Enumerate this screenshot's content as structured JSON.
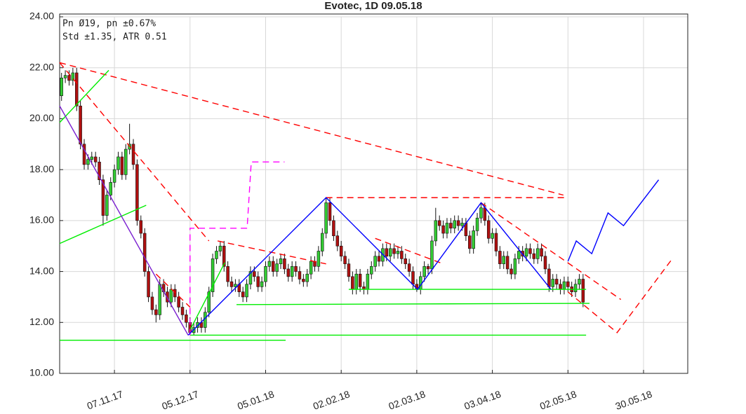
{
  "chart_data": {
    "type": "candlestick",
    "title": "Evotec, 1D 09.05.18",
    "info": [
      "Pn  Ø19, pn ±0.67%",
      "Std ±1.35, ATR 0.51"
    ],
    "xlim": [
      -14.5,
      151.7
    ],
    "xticks": [
      {
        "value": 0,
        "label": "07.11.17"
      },
      {
        "value": 20,
        "label": "05.12.17"
      },
      {
        "value": 40,
        "label": "05.01.18"
      },
      {
        "value": 60,
        "label": "02.02.18"
      },
      {
        "value": 80,
        "label": "02.03.18"
      },
      {
        "value": 100,
        "label": "03.04.18"
      },
      {
        "value": 120,
        "label": "02.05.18"
      },
      {
        "value": 140,
        "label": "30.05.18"
      }
    ],
    "ylim": [
      10,
      24
    ],
    "yticks": [
      {
        "value": 10,
        "label": "10.00"
      },
      {
        "value": 12,
        "label": "12.00"
      },
      {
        "value": 14,
        "label": "14.00"
      },
      {
        "value": 16,
        "label": "16.00"
      },
      {
        "value": 18,
        "label": "18.00"
      },
      {
        "value": 20,
        "label": "20.00"
      },
      {
        "value": 22,
        "label": "22.00"
      },
      {
        "value": 24,
        "label": "24.00"
      }
    ],
    "grid": true,
    "up_color": "#33cc33",
    "down_color": "#b01010",
    "x": [
      -14,
      -13,
      -12,
      -11,
      -10,
      -9,
      -8,
      -7,
      -6,
      -5,
      -4,
      -3,
      -2,
      -1,
      0,
      1,
      2,
      3,
      4,
      5,
      6,
      7,
      8,
      9,
      10,
      11,
      12,
      13,
      14,
      15,
      16,
      17,
      18,
      19,
      20,
      21,
      22,
      23,
      24,
      25,
      26,
      27,
      28,
      29,
      30,
      31,
      32,
      33,
      34,
      35,
      36,
      37,
      38,
      39,
      40,
      41,
      42,
      43,
      44,
      45,
      46,
      47,
      48,
      49,
      50,
      51,
      52,
      53,
      54,
      55,
      56,
      57,
      58,
      59,
      60,
      61,
      62,
      63,
      64,
      65,
      66,
      67,
      68,
      69,
      70,
      71,
      72,
      73,
      74,
      75,
      76,
      77,
      78,
      79,
      80,
      81,
      82,
      83,
      84,
      85,
      86,
      87,
      88,
      89,
      90,
      91,
      92,
      93,
      94,
      95,
      96,
      97,
      98,
      99,
      100,
      101,
      102,
      103,
      104,
      105,
      106,
      107,
      108,
      109,
      110,
      111,
      112,
      113,
      114,
      115,
      116,
      117,
      118,
      119,
      120,
      121,
      122,
      123,
      124
    ],
    "open": [
      20.9,
      21.6,
      21.7,
      21.5,
      21.8,
      20.5,
      19.0,
      18.2,
      18.4,
      18.5,
      18.3,
      17.6,
      16.2,
      17.0,
      17.5,
      18.0,
      18.5,
      17.8,
      18.8,
      19.0,
      18.2,
      16.0,
      15.5,
      14.0,
      13.0,
      12.5,
      12.3,
      13.5,
      13.2,
      12.8,
      13.3,
      13.0,
      12.6,
      12.3,
      12.0,
      11.6,
      11.8,
      12.0,
      11.8,
      12.4,
      13.2,
      14.5,
      14.8,
      15.0,
      14.2,
      13.6,
      13.4,
      13.5,
      13.2,
      13.0,
      13.5,
      14.0,
      13.8,
      13.4,
      13.6,
      14.2,
      14.4,
      14.0,
      14.3,
      14.5,
      14.1,
      13.8,
      14.2,
      14.0,
      13.7,
      13.6,
      13.9,
      14.4,
      14.2,
      14.8,
      15.5,
      16.7,
      16.0,
      15.4,
      15.0,
      14.6,
      14.3,
      13.8,
      13.3,
      13.9,
      13.4,
      13.3,
      13.9,
      14.2,
      14.6,
      14.4,
      14.9,
      14.6,
      14.9,
      14.7,
      14.8,
      14.5,
      14.3,
      14.0,
      13.5,
      13.3,
      13.8,
      14.2,
      14.1,
      15.2,
      16.0,
      15.8,
      15.5,
      15.9,
      15.7,
      16.0,
      15.8,
      15.9,
      15.4,
      14.9,
      15.6,
      16.1,
      16.5,
      16.0,
      15.3,
      15.5,
      14.8,
      14.3,
      14.6,
      14.1,
      13.9,
      14.5,
      14.8,
      14.6,
      14.9,
      14.7,
      14.5,
      14.9,
      14.6,
      14.1,
      13.4,
      13.7,
      13.5,
      13.3,
      13.6,
      13.4,
      13.2,
      13.5,
      13.7
    ],
    "high": [
      21.8,
      21.9,
      21.9,
      22.0,
      22.0,
      20.7,
      19.2,
      18.6,
      18.7,
      18.7,
      18.5,
      17.8,
      17.2,
      17.7,
      18.2,
      18.7,
      18.7,
      19.0,
      19.8,
      19.2,
      18.4,
      16.2,
      15.7,
      14.2,
      13.2,
      12.7,
      13.7,
      13.7,
      13.4,
      13.5,
      13.5,
      13.2,
      12.8,
      12.5,
      12.2,
      12.0,
      12.2,
      12.2,
      12.6,
      13.4,
      14.7,
      15.0,
      15.2,
      15.2,
      14.4,
      13.8,
      13.7,
      13.7,
      13.4,
      13.7,
      14.2,
      14.2,
      14.0,
      13.8,
      14.4,
      14.6,
      14.6,
      14.5,
      14.7,
      14.7,
      14.3,
      14.4,
      14.4,
      14.2,
      13.9,
      14.1,
      14.6,
      14.6,
      15.0,
      15.7,
      16.9,
      16.9,
      16.2,
      15.6,
      15.2,
      14.8,
      14.5,
      14.0,
      14.1,
      14.1,
      13.6,
      14.1,
      14.4,
      14.8,
      14.8,
      15.1,
      15.1,
      15.1,
      15.1,
      15.0,
      15.0,
      14.7,
      14.5,
      14.2,
      13.7,
      14.0,
      14.4,
      14.3,
      15.4,
      16.5,
      16.2,
      16.0,
      16.1,
      16.1,
      16.2,
      16.2,
      16.1,
      16.1,
      15.6,
      15.8,
      16.3,
      16.7,
      16.7,
      16.2,
      15.7,
      15.7,
      15.0,
      14.8,
      14.8,
      14.3,
      14.7,
      15.0,
      15.0,
      15.1,
      15.1,
      14.9,
      15.1,
      15.1,
      14.8,
      14.3,
      13.9,
      13.9,
      13.7,
      13.8,
      13.8,
      13.6,
      13.7,
      13.9,
      13.9
    ],
    "low": [
      20.7,
      21.4,
      21.3,
      21.3,
      20.3,
      18.8,
      18.0,
      18.0,
      18.2,
      18.1,
      17.4,
      15.8,
      16.0,
      16.8,
      17.3,
      17.8,
      17.6,
      17.6,
      18.6,
      18.0,
      15.8,
      15.3,
      13.8,
      12.8,
      12.3,
      12.0,
      12.1,
      13.0,
      12.6,
      12.6,
      12.8,
      12.4,
      12.1,
      11.8,
      11.5,
      11.5,
      11.6,
      11.6,
      11.6,
      12.2,
      13.0,
      14.3,
      14.6,
      14.0,
      13.4,
      13.2,
      13.2,
      13.0,
      12.8,
      12.8,
      13.3,
      13.6,
      13.2,
      13.2,
      13.4,
      14.0,
      13.8,
      13.8,
      14.1,
      13.9,
      13.6,
      13.6,
      13.8,
      13.5,
      13.4,
      13.4,
      13.7,
      14.0,
      14.0,
      14.6,
      15.3,
      15.8,
      15.2,
      14.8,
      14.4,
      14.1,
      13.6,
      13.1,
      13.1,
      13.2,
      13.1,
      13.1,
      13.7,
      14.0,
      14.2,
      14.2,
      14.4,
      14.4,
      14.5,
      14.5,
      14.3,
      14.1,
      13.8,
      13.3,
      13.2,
      13.1,
      13.6,
      13.9,
      13.9,
      15.0,
      15.6,
      15.3,
      15.3,
      15.5,
      15.5,
      15.6,
      15.6,
      15.2,
      14.7,
      14.7,
      15.4,
      15.9,
      15.8,
      15.1,
      15.1,
      14.6,
      14.1,
      14.1,
      13.9,
      13.7,
      13.7,
      14.3,
      14.4,
      14.4,
      14.5,
      14.3,
      14.3,
      14.4,
      13.9,
      13.2,
      13.2,
      13.3,
      13.1,
      13.1,
      13.2,
      13.0,
      13.0,
      13.3,
      12.6
    ],
    "close": [
      21.6,
      21.7,
      21.5,
      21.8,
      20.5,
      19.0,
      18.2,
      18.4,
      18.5,
      18.3,
      17.6,
      16.2,
      17.0,
      17.5,
      18.0,
      18.5,
      17.8,
      18.8,
      19.0,
      18.2,
      16.0,
      15.5,
      14.0,
      13.0,
      12.5,
      12.3,
      13.5,
      13.2,
      12.8,
      13.3,
      13.0,
      12.6,
      12.3,
      12.0,
      11.6,
      11.8,
      12.0,
      11.8,
      12.4,
      13.2,
      14.5,
      14.8,
      15.0,
      14.2,
      13.6,
      13.4,
      13.5,
      13.2,
      13.0,
      13.5,
      14.0,
      13.8,
      13.4,
      13.6,
      14.2,
      14.4,
      14.0,
      14.3,
      14.5,
      14.1,
      13.8,
      14.2,
      14.0,
      13.7,
      13.6,
      13.9,
      14.4,
      14.2,
      14.8,
      15.5,
      16.7,
      16.0,
      15.4,
      15.0,
      14.6,
      14.3,
      13.8,
      13.3,
      13.9,
      13.4,
      13.3,
      13.9,
      14.2,
      14.6,
      14.4,
      14.9,
      14.6,
      14.9,
      14.7,
      14.8,
      14.5,
      14.3,
      14.0,
      13.5,
      13.3,
      13.8,
      14.2,
      14.1,
      15.2,
      16.0,
      15.8,
      15.5,
      15.9,
      15.7,
      16.0,
      15.8,
      15.9,
      15.4,
      14.9,
      15.6,
      16.1,
      16.5,
      16.0,
      15.3,
      15.5,
      14.8,
      14.3,
      14.6,
      14.1,
      13.9,
      14.5,
      14.8,
      14.6,
      14.9,
      14.7,
      14.5,
      14.9,
      14.6,
      14.1,
      13.4,
      13.7,
      13.5,
      13.3,
      13.6,
      13.4,
      13.2,
      13.5,
      13.7,
      12.8
    ],
    "lines": [
      {
        "color": "#ff0000",
        "dash": true,
        "x": [
          -14.5,
          118.8
        ],
        "y": [
          22.2,
          17.0
        ]
      },
      {
        "color": "#ff0000",
        "dash": true,
        "x": [
          -14.5,
          25
        ],
        "y": [
          22.2,
          15.2
        ]
      },
      {
        "color": "#ff0000",
        "dash": true,
        "x": [
          56,
          119
        ],
        "y": [
          16.9,
          16.9
        ]
      },
      {
        "color": "#ff0000",
        "dash": true,
        "x": [
          27.3,
          56
        ],
        "y": [
          15.2,
          14.3
        ]
      },
      {
        "color": "#ff0000",
        "dash": true,
        "x": [
          11,
          20
        ],
        "y": [
          13.9,
          12.6
        ]
      },
      {
        "color": "#ff0000",
        "dash": true,
        "x": [
          69,
          87
        ],
        "y": [
          15.3,
          14.3
        ]
      },
      {
        "color": "#ff0000",
        "dash": true,
        "x": [
          97,
          134
        ],
        "y": [
          16.7,
          12.9
        ]
      },
      {
        "color": "#ff0000",
        "dash": true,
        "x": [
          120,
          133,
          147.6
        ],
        "y": [
          13.2,
          11.6,
          14.5
        ]
      },
      {
        "color": "#00ee00",
        "dash": false,
        "x": [
          -14.5,
          45.3
        ],
        "y": [
          11.3,
          11.3
        ]
      },
      {
        "color": "#00ee00",
        "dash": false,
        "x": [
          20,
          124.8
        ],
        "y": [
          11.5,
          11.5
        ]
      },
      {
        "color": "#00ee00",
        "dash": false,
        "x": [
          32.3,
          125.7
        ],
        "y": [
          12.7,
          12.75
        ]
      },
      {
        "color": "#00ee00",
        "dash": false,
        "x": [
          62,
          124.8
        ],
        "y": [
          13.3,
          13.3
        ]
      },
      {
        "color": "#00ee00",
        "dash": false,
        "x": [
          -14.5,
          8.4
        ],
        "y": [
          15.1,
          16.6
        ]
      },
      {
        "color": "#00ee00",
        "dash": false,
        "x": [
          -14.5,
          -1.5
        ],
        "y": [
          19.85,
          21.9
        ]
      },
      {
        "color": "#00ee00",
        "dash": false,
        "x": [
          20,
          29.2
        ],
        "y": [
          11.7,
          14.35
        ]
      },
      {
        "color": "#ff00ff",
        "dash": true,
        "x": [
          20,
          20,
          35.1,
          36.2,
          45
        ],
        "y": [
          11.5,
          15.7,
          15.7,
          18.3,
          18.3
        ]
      },
      {
        "color": "#7a1fd0",
        "dash": false,
        "x": [
          -14.5,
          19.5
        ],
        "y": [
          20.5,
          11.5
        ]
      },
      {
        "color": "#0000ff",
        "dash": false,
        "x": [
          19.5,
          56,
          80.2,
          97,
          115.5
        ],
        "y": [
          11.5,
          16.9,
          13.3,
          16.7,
          13.3
        ]
      },
      {
        "color": "#0000ff",
        "dash": false,
        "x": [
          120,
          122.2,
          126.3,
          130.6,
          134.7,
          144
        ],
        "y": [
          14.4,
          15.2,
          14.7,
          16.3,
          15.8,
          17.6
        ]
      }
    ]
  }
}
